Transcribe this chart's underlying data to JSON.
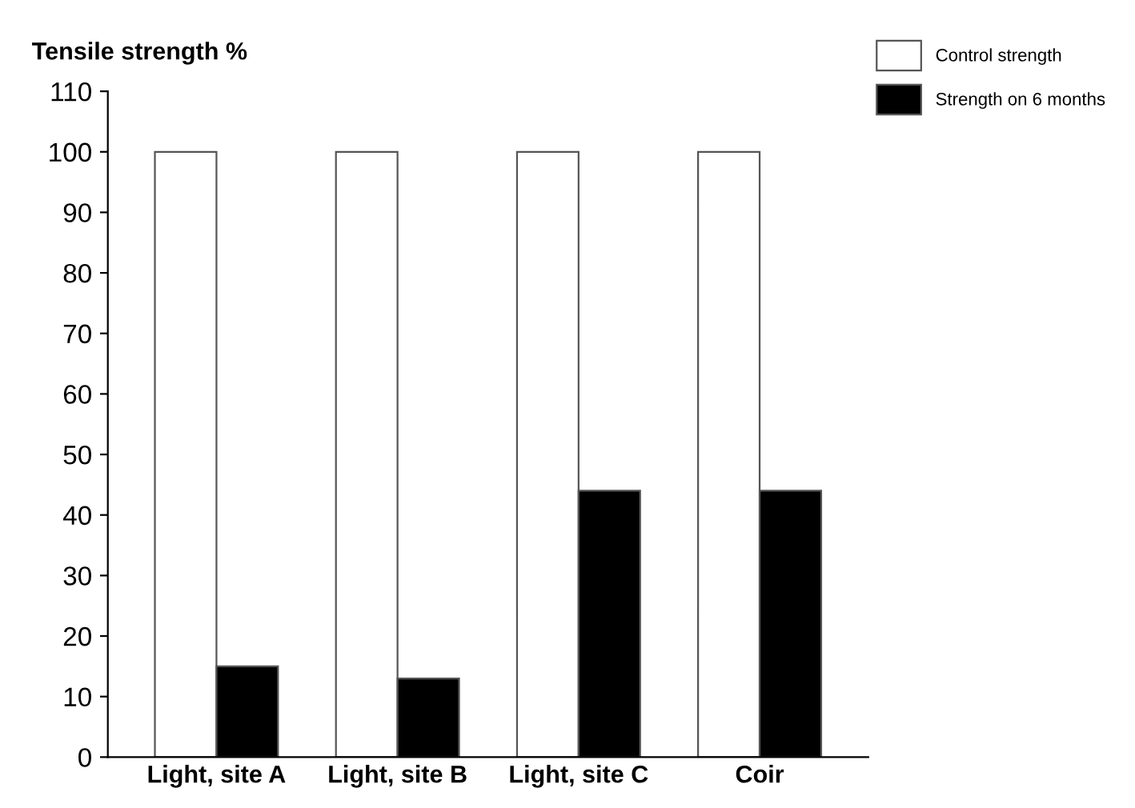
{
  "chart_data": {
    "type": "bar",
    "ylabel": "Tensile strength %",
    "categories": [
      "Light, site A",
      "Light, site B",
      "Light, site C",
      "Coir"
    ],
    "series": [
      {
        "name": "Control strength",
        "color": "#ffffff",
        "values": [
          100,
          100,
          100,
          100
        ]
      },
      {
        "name": "Strength on 6 months",
        "color": "#000000",
        "values": [
          15,
          13,
          44,
          44
        ]
      }
    ],
    "ylim": [
      0,
      110
    ],
    "yticks": [
      0,
      10,
      20,
      30,
      40,
      50,
      60,
      70,
      80,
      90,
      100,
      110
    ],
    "grid": false,
    "legend": "top right"
  }
}
